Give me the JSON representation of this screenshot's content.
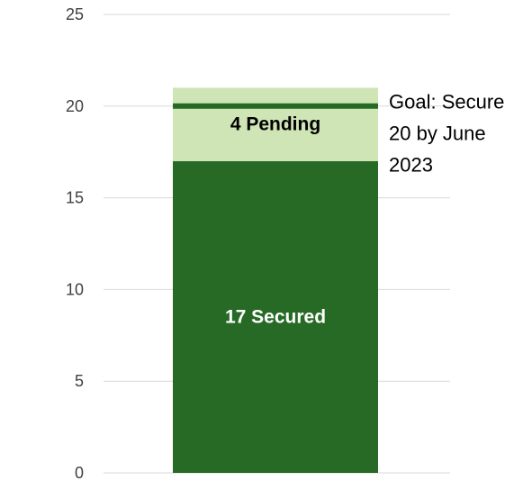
{
  "chart_data": {
    "type": "bar",
    "stacked": true,
    "categories": [
      ""
    ],
    "series": [
      {
        "values": [
          17
        ],
        "color": "#276a25",
        "label": "17 Secured",
        "label_color": "#ffffff"
      },
      {
        "values": [
          4
        ],
        "color": "#cfe5b5",
        "label": "4 Pending",
        "label_color": "#000000"
      }
    ],
    "goal": {
      "value": 20,
      "color": "#276a25",
      "label_lines": [
        "Goal: Secure",
        "20 by June",
        "2023"
      ]
    },
    "ylim": [
      0,
      25
    ],
    "yticks": [
      0,
      5,
      10,
      15,
      20,
      25
    ],
    "ytick_labels": [
      "0",
      "5",
      "10",
      "15",
      "20",
      "25"
    ],
    "grid": true,
    "legend": "none",
    "title": "",
    "xlabel": "",
    "ylabel": ""
  }
}
